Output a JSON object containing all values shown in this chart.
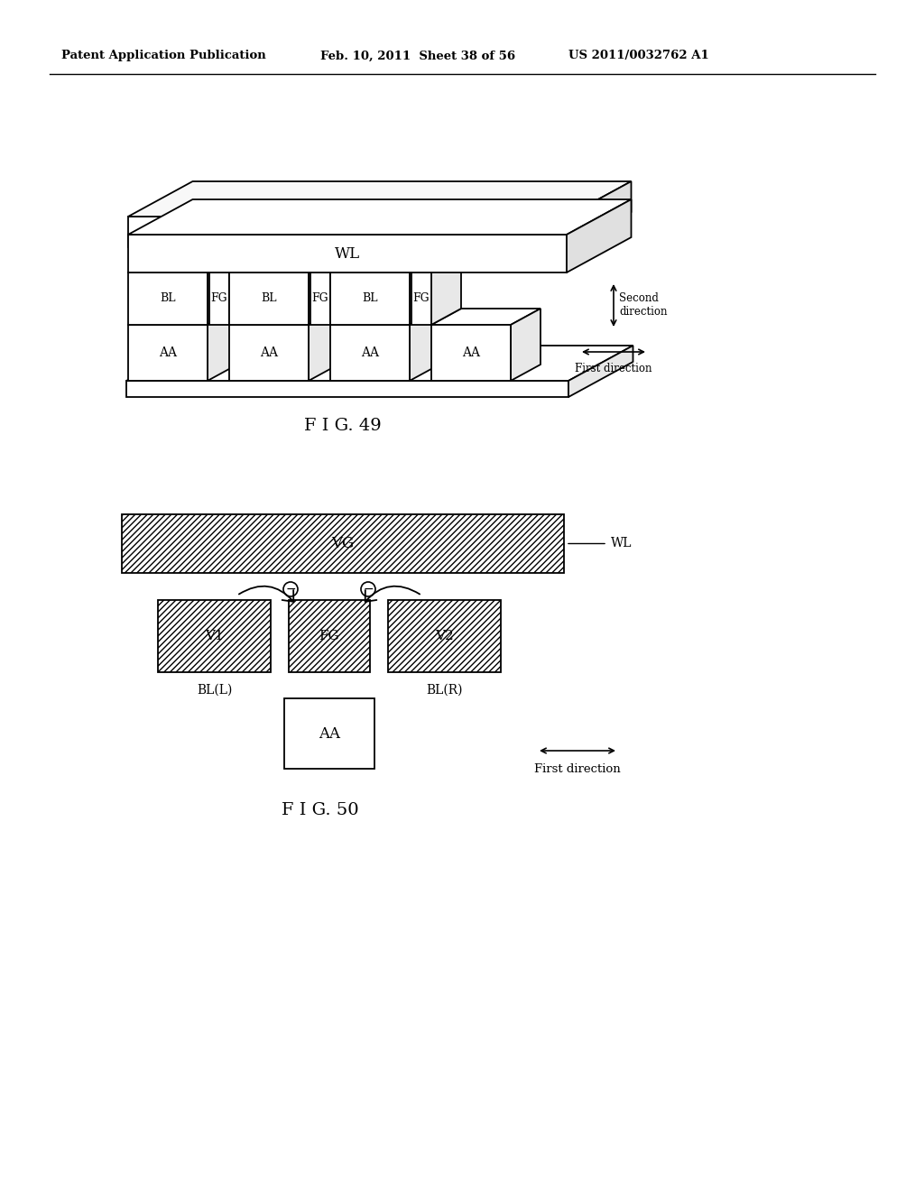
{
  "bg_color": "#ffffff",
  "header_left": "Patent Application Publication",
  "header_mid": "Feb. 10, 2011  Sheet 38 of 56",
  "header_right": "US 2011/0032762 A1",
  "fig49_label": "F I G. 49",
  "fig50_label": "F I G. 50",
  "line_color": "#000000",
  "lw": 1.3
}
